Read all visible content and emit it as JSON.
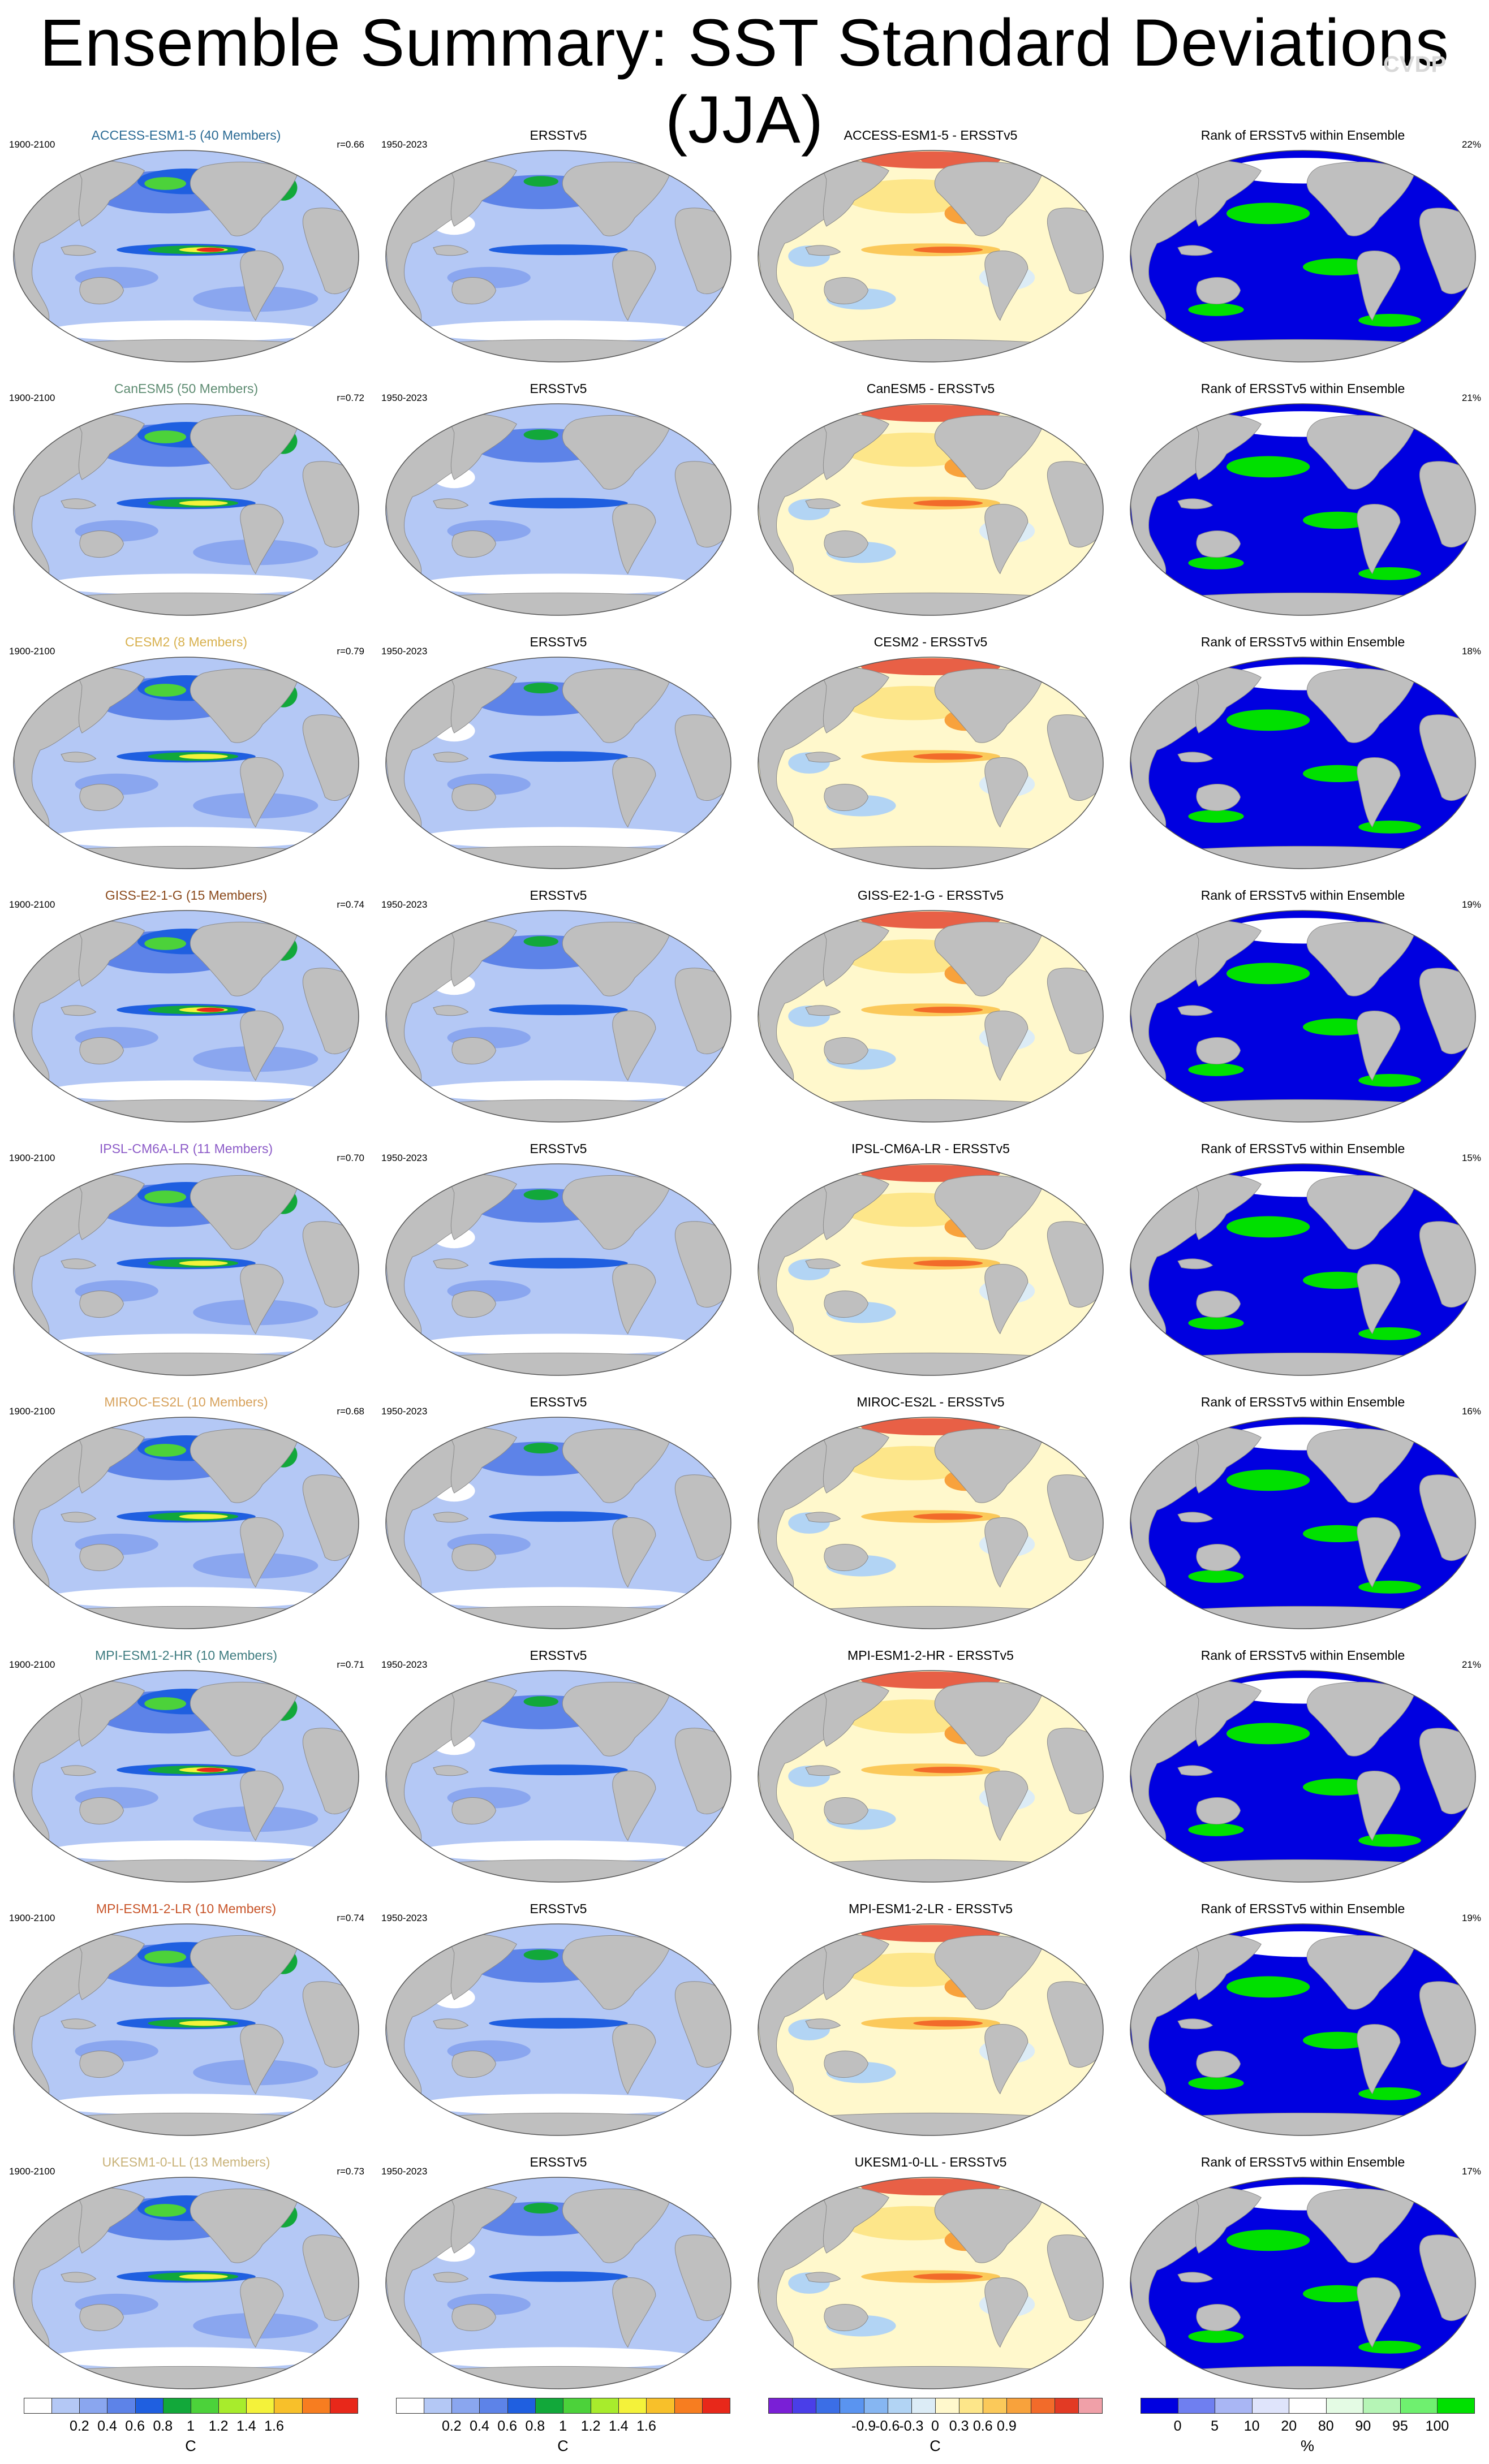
{
  "title": "Ensemble Summary: SST Standard Deviations (JJA)",
  "watermark": "CVDP",
  "rows": [
    {
      "model": "ACCESS-ESM1-5 (40 Members)",
      "model_color": "#2a6a94",
      "period": "1900-2100",
      "r": "r=0.66",
      "obs_title": "ERSSTv5",
      "obs_period": "1950-2023",
      "diff_title": "ACCESS-ESM1-5 - ERSSTv5",
      "rank_title": "Rank of ERSSTv5 within Ensemble",
      "rank_pct": "22%"
    },
    {
      "model": "CanESM5 (50 Members)",
      "model_color": "#5e8c72",
      "period": "1900-2100",
      "r": "r=0.72",
      "obs_title": "ERSSTv5",
      "obs_period": "1950-2023",
      "diff_title": "CanESM5 - ERSSTv5",
      "rank_title": "Rank of ERSSTv5 within Ensemble",
      "rank_pct": "21%"
    },
    {
      "model": "CESM2 (8 Members)",
      "model_color": "#d8b14f",
      "period": "1900-2100",
      "r": "r=0.79",
      "obs_title": "ERSSTv5",
      "obs_period": "1950-2023",
      "diff_title": "CESM2 - ERSSTv5",
      "rank_title": "Rank of ERSSTv5 within Ensemble",
      "rank_pct": "18%"
    },
    {
      "model": "GISS-E2-1-G (15 Members)",
      "model_color": "#8b4a1c",
      "period": "1900-2100",
      "r": "r=0.74",
      "obs_title": "ERSSTv5",
      "obs_period": "1950-2023",
      "diff_title": "GISS-E2-1-G - ERSSTv5",
      "rank_title": "Rank of ERSSTv5 within Ensemble",
      "rank_pct": "19%"
    },
    {
      "model": "IPSL-CM6A-LR (11 Members)",
      "model_color": "#8d5cc8",
      "period": "1900-2100",
      "r": "r=0.70",
      "obs_title": "ERSSTv5",
      "obs_period": "1950-2023",
      "diff_title": "IPSL-CM6A-LR - ERSSTv5",
      "rank_title": "Rank of ERSSTv5 within Ensemble",
      "rank_pct": "15%"
    },
    {
      "model": "MIROC-ES2L (10 Members)",
      "model_color": "#d7a25c",
      "period": "1900-2100",
      "r": "r=0.68",
      "obs_title": "ERSSTv5",
      "obs_period": "1950-2023",
      "diff_title": "MIROC-ES2L - ERSSTv5",
      "rank_title": "Rank of ERSSTv5 within Ensemble",
      "rank_pct": "16%"
    },
    {
      "model": "MPI-ESM1-2-HR (10 Members)",
      "model_color": "#3f7c80",
      "period": "1900-2100",
      "r": "r=0.71",
      "obs_title": "ERSSTv5",
      "obs_period": "1950-2023",
      "diff_title": "MPI-ESM1-2-HR - ERSSTv5",
      "rank_title": "Rank of ERSSTv5 within Ensemble",
      "rank_pct": "21%"
    },
    {
      "model": "MPI-ESM1-2-LR (10 Members)",
      "model_color": "#c8552a",
      "period": "1900-2100",
      "r": "r=0.74",
      "obs_title": "ERSSTv5",
      "obs_period": "1950-2023",
      "diff_title": "MPI-ESM1-2-LR - ERSSTv5",
      "rank_title": "Rank of ERSSTv5 within Ensemble",
      "rank_pct": "19%"
    },
    {
      "model": "UKESM1-0-LL (13 Members)",
      "model_color": "#c9b37a",
      "period": "1900-2100",
      "r": "r=0.73",
      "obs_title": "ERSSTv5",
      "obs_period": "1950-2023",
      "diff_title": "UKESM1-0-LL - ERSSTv5",
      "rank_title": "Rank of ERSSTv5 within Ensemble",
      "rank_pct": "17%"
    }
  ],
  "colorbars": [
    {
      "name": "sst-std-model",
      "unit": "C",
      "colors": [
        "#ffffff",
        "#b4c8f5",
        "#8aa6ef",
        "#5d83e8",
        "#1f5fe0",
        "#12a83a",
        "#4cd23a",
        "#a8ec2c",
        "#f4f23a",
        "#f8c02a",
        "#f77d20",
        "#e8281a"
      ],
      "ticks": [
        "0.2",
        "0.4",
        "0.6",
        "0.8",
        "1",
        "1.2",
        "1.4",
        "1.6"
      ]
    },
    {
      "name": "sst-std-obs",
      "unit": "C",
      "colors": [
        "#ffffff",
        "#b4c8f5",
        "#8aa6ef",
        "#5d83e8",
        "#1f5fe0",
        "#12a83a",
        "#4cd23a",
        "#a8ec2c",
        "#f4f23a",
        "#f8c02a",
        "#f77d20",
        "#e8281a"
      ],
      "ticks": [
        "0.2",
        "0.4",
        "0.6",
        "0.8",
        "1",
        "1.2",
        "1.4",
        "1.6"
      ]
    },
    {
      "name": "sst-std-difference",
      "unit": "C",
      "colors": [
        "#7a1fd6",
        "#4a3ee8",
        "#3b6ee6",
        "#5a94f0",
        "#86b6f2",
        "#b2d4f4",
        "#dcecf6",
        "#fff8cc",
        "#fde68a",
        "#fbc95a",
        "#f8a23c",
        "#f26b2a",
        "#e23a24",
        "#f0a0a8"
      ],
      "ticks": [
        "-0.9",
        "-0.6",
        "-0.3",
        "0",
        "0.3",
        "0.6",
        "0.9"
      ]
    },
    {
      "name": "rank",
      "unit": "%",
      "colors": [
        "#0000e0",
        "#6f7ff0",
        "#a9b6f4",
        "#dfe4fb",
        "#ffffff",
        "#e4fbe4",
        "#b6f5b6",
        "#6ff06f",
        "#00e000"
      ],
      "ticks": [
        "0",
        "5",
        "10",
        "20",
        "80",
        "90",
        "95",
        "100"
      ]
    }
  ]
}
